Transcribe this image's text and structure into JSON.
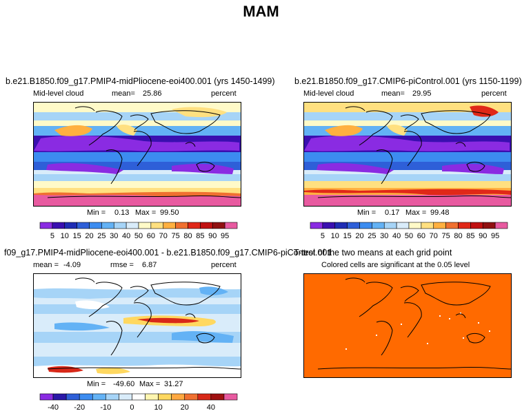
{
  "title": "MAM",
  "panels": [
    {
      "title": "b.e21.B1850.f09_g17.PMIP4-midPliocene-eoi400.001 (yrs 1450-1499)",
      "left_label": "Mid-level cloud",
      "mean_label": "mean=",
      "mean_value": "25.86",
      "units": "percent",
      "min_label": "Min =",
      "min_value": "0.13",
      "max_label": "Max =",
      "max_value": "99.50"
    },
    {
      "title": "b.e21.B1850.f09_g17.CMIP6-piControl.001 (yrs 1150-1199)",
      "left_label": "Mid-level cloud",
      "mean_label": "mean=",
      "mean_value": "29.95",
      "units": "percent",
      "min_label": "Min =",
      "min_value": "0.17",
      "max_label": "Max =",
      "max_value": "99.48"
    },
    {
      "title": "f09_g17.PMIP4-midPliocene-eoi400.001 - b.e21.B1850.f09_g17.CMIP6-piControl.001",
      "mean_label": "mean =",
      "mean_value": "-4.09",
      "rmse_label": "rmse =",
      "rmse_value": "6.87",
      "units": "percent",
      "min_label": "Min =",
      "min_value": "-49.60",
      "max_label": "Max =",
      "max_value": "31.27"
    },
    {
      "title": "T-test of the two means at each grid point",
      "subtitle": "Colored cells are significant at the 0.05 level"
    }
  ],
  "chart_data": [
    {
      "type": "heatmap",
      "title": "b.e21.B1850.f09_g17.PMIP4-midPliocene-eoi400.001 (yrs 1450-1499)",
      "variable": "Mid-level cloud",
      "units": "percent",
      "mean": 25.86,
      "min": 0.13,
      "max": 99.5,
      "colorbar_ticks": [
        5,
        10,
        15,
        20,
        25,
        30,
        40,
        50,
        60,
        70,
        75,
        80,
        85,
        90,
        95
      ],
      "colorbar_colors": [
        "#8a2be2",
        "#3a0fb0",
        "#1f2db4",
        "#2e5fd8",
        "#3c8cf0",
        "#63b2f5",
        "#a6d4f7",
        "#d9ecfa",
        "#fffac8",
        "#ffe080",
        "#ffb040",
        "#f07030",
        "#e02818",
        "#c01010",
        "#901010",
        "#e85aa0"
      ]
    },
    {
      "type": "heatmap",
      "title": "b.e21.B1850.f09_g17.CMIP6-piControl.001 (yrs 1150-1199)",
      "variable": "Mid-level cloud",
      "units": "percent",
      "mean": 29.95,
      "min": 0.17,
      "max": 99.48,
      "colorbar_ticks": [
        5,
        10,
        15,
        20,
        25,
        30,
        40,
        50,
        60,
        70,
        75,
        80,
        85,
        90,
        95
      ],
      "colorbar_colors": [
        "#8a2be2",
        "#3a0fb0",
        "#1f2db4",
        "#2e5fd8",
        "#3c8cf0",
        "#63b2f5",
        "#a6d4f7",
        "#d9ecfa",
        "#fffac8",
        "#ffe080",
        "#ffb040",
        "#f07030",
        "#e02818",
        "#c01010",
        "#901010",
        "#e85aa0"
      ]
    },
    {
      "type": "heatmap",
      "title": "f09_g17.PMIP4-midPliocene-eoi400.001 - b.e21.B1850.f09_g17.CMIP6-piControl.001",
      "units": "percent",
      "mean": -4.09,
      "rmse": 6.87,
      "min": -49.6,
      "max": 31.27,
      "colorbar_tick_labels": [
        "-40",
        "-20",
        "-10",
        "0",
        "10",
        "20",
        "40"
      ],
      "colorbar_colors": [
        "#8a2be2",
        "#2a18a8",
        "#2e5fd8",
        "#3c8cf0",
        "#63b2f5",
        "#a6d4f7",
        "#d9ecfa",
        "#ffffff",
        "#fff6b0",
        "#ffd860",
        "#ffa840",
        "#f07030",
        "#d82818",
        "#a01010",
        "#e85aa0"
      ]
    },
    {
      "type": "heatmap",
      "title": "T-test of the two means at each grid point",
      "subtitle": "Colored cells are significant at the 0.05 level",
      "fill_color": "#ff6a00"
    }
  ]
}
